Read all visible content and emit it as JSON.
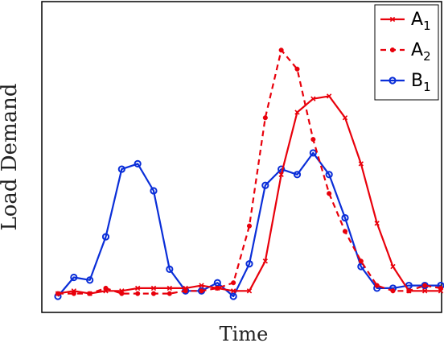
{
  "chart_data": {
    "type": "line",
    "xlabel": "Time",
    "ylabel": "Load Demand",
    "xlim": [
      0,
      24
    ],
    "ylim": [
      0,
      1
    ],
    "grid": false,
    "legend_position": "top-right",
    "x": [
      0,
      1,
      2,
      3,
      4,
      5,
      6,
      7,
      8,
      9,
      10,
      11,
      12,
      13,
      14,
      15,
      16,
      17,
      18,
      19,
      20,
      21,
      22,
      23,
      24
    ],
    "series": [
      {
        "name": "A1",
        "legend_main": "A",
        "legend_sub": "1",
        "color": "#e8000b",
        "line_style": "solid",
        "marker": "x",
        "values": [
          0.01,
          0.02,
          0.01,
          0.02,
          0.02,
          0.03,
          0.03,
          0.03,
          0.03,
          0.04,
          0.03,
          0.02,
          0.02,
          0.13,
          0.45,
          0.68,
          0.73,
          0.74,
          0.66,
          0.49,
          0.27,
          0.11,
          0.02,
          0.02,
          0.02
        ]
      },
      {
        "name": "A2",
        "legend_main": "A",
        "legend_sub": "2",
        "color": "#e8000b",
        "line_style": "dashed",
        "marker": "dot",
        "values": [
          0.01,
          0.01,
          0.01,
          0.03,
          0.01,
          0.01,
          0.01,
          0.01,
          0.02,
          0.02,
          0.03,
          0.05,
          0.26,
          0.66,
          0.91,
          0.84,
          0.58,
          0.38,
          0.24,
          0.13,
          0.04,
          0.02,
          0.02,
          0.04,
          0.03
        ]
      },
      {
        "name": "B1",
        "legend_main": "B",
        "legend_sub": "1",
        "color": "#0a2ed8",
        "line_style": "solid",
        "marker": "circle",
        "values": [
          0.0,
          0.07,
          0.06,
          0.22,
          0.47,
          0.49,
          0.39,
          0.1,
          0.02,
          0.02,
          0.05,
          0.0,
          0.12,
          0.41,
          0.47,
          0.45,
          0.53,
          0.45,
          0.29,
          0.11,
          0.03,
          0.03,
          0.04,
          0.04,
          0.04
        ]
      }
    ]
  }
}
